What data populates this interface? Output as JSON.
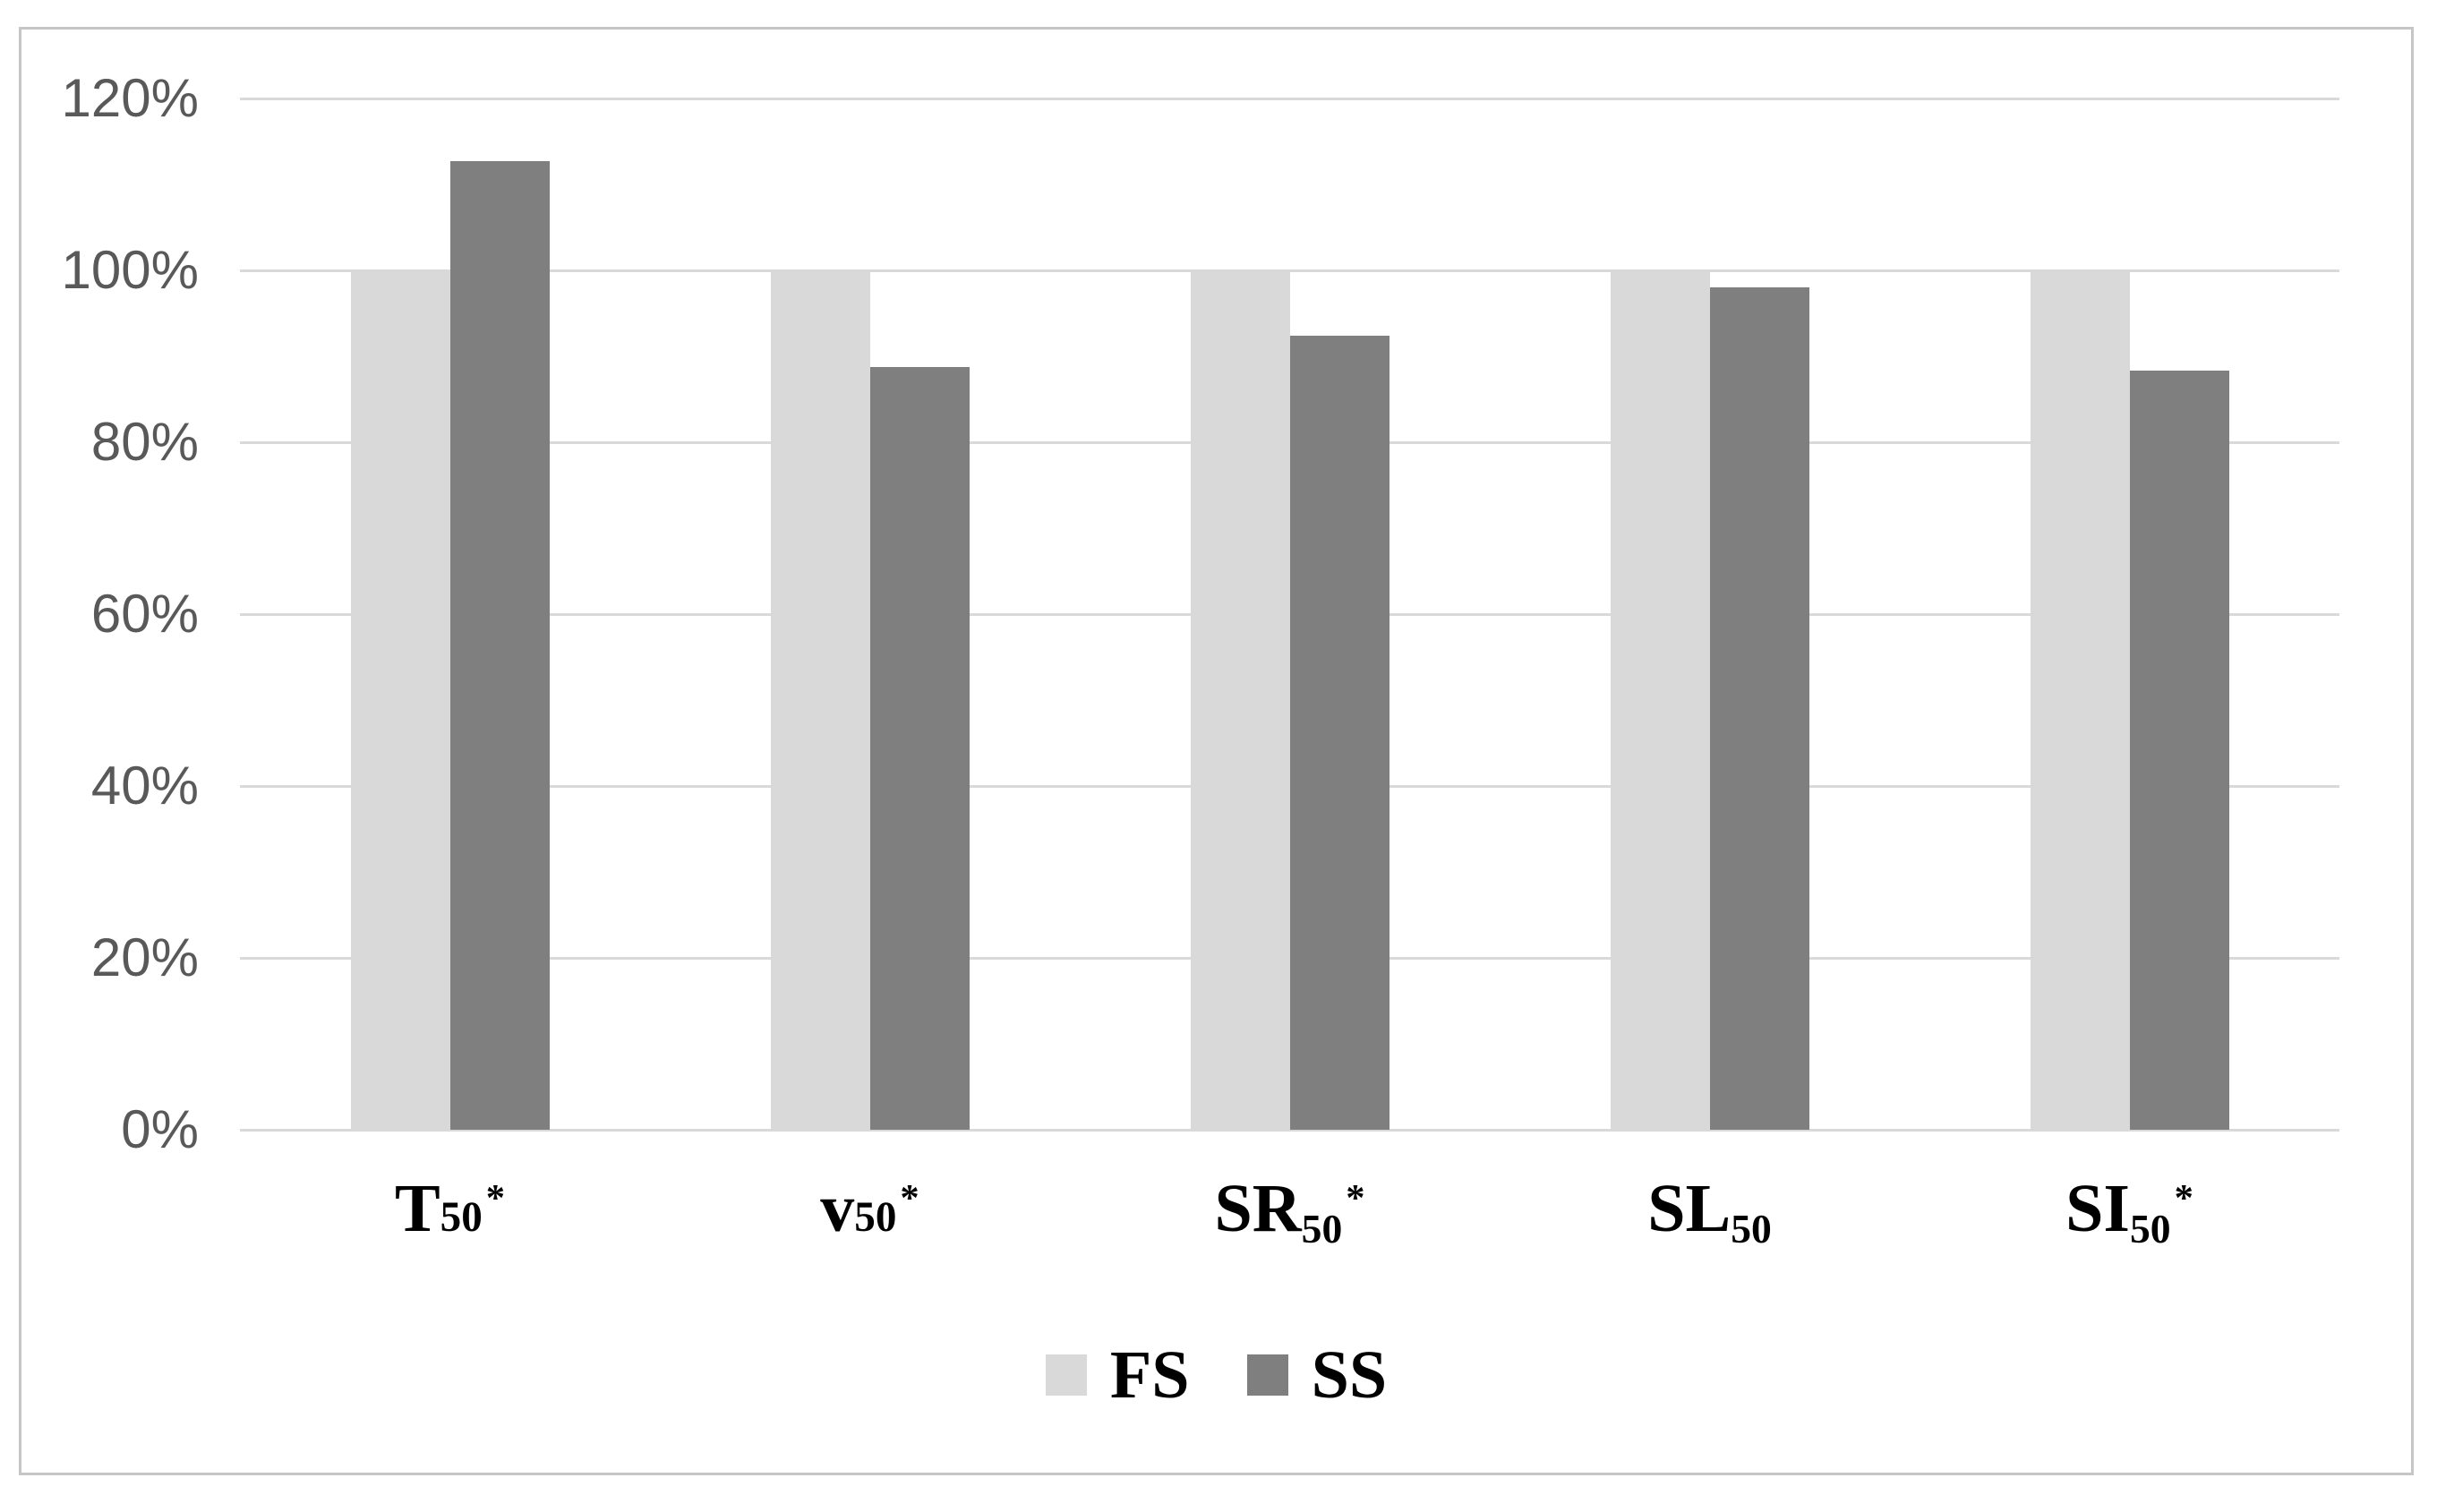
{
  "figure": {
    "background": "#ffffff",
    "frame_border_color": "#c6c6c6"
  },
  "chart_data": {
    "type": "bar",
    "title": "",
    "categories": [
      {
        "base": "T",
        "sub": "50",
        "star": "*",
        "sub_style": "baseline"
      },
      {
        "base": "v",
        "sub": "50",
        "star": "*",
        "sub_style": "baseline"
      },
      {
        "base": "SR",
        "sub": "50",
        "star": "*",
        "sub_style": "low"
      },
      {
        "base": "SL",
        "sub": "50",
        "star": "",
        "sub_style": "low"
      },
      {
        "base": "SI",
        "sub": "50",
        "star": "*",
        "sub_style": "low"
      }
    ],
    "series": [
      {
        "name": "FS",
        "color": "#d9d9d9",
        "values": [
          100,
          100,
          100,
          100,
          100
        ]
      },
      {
        "name": "SS",
        "color": "#7f7f7f",
        "values": [
          112.7,
          88.7,
          92.4,
          98.0,
          88.3
        ]
      }
    ],
    "y_axis": {
      "min": 0,
      "max": 120,
      "ticks": [
        {
          "label": "120%",
          "value": 120
        },
        {
          "label": "100%",
          "value": 100
        },
        {
          "label": "80%",
          "value": 80
        },
        {
          "label": "60%",
          "value": 60
        },
        {
          "label": "40%",
          "value": 40
        },
        {
          "label": "20%",
          "value": 20
        },
        {
          "label": "0%",
          "value": 0
        }
      ],
      "tick_text_color": "#595959"
    },
    "grid": true,
    "gridline_color": "#d9d9d9",
    "xlabel": "",
    "ylabel": "",
    "legend_position": "bottom-center",
    "legend_entries": [
      "FS",
      "SS"
    ]
  }
}
